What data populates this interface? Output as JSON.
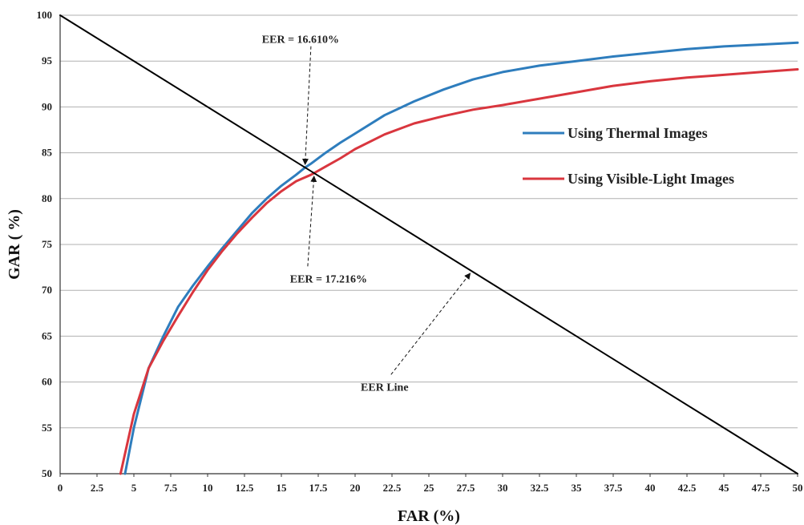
{
  "chart_data": {
    "type": "line",
    "xlabel": "FAR (%)",
    "ylabel": "GAR ( %)",
    "xlim": [
      0,
      50
    ],
    "ylim": [
      50,
      100
    ],
    "grid": true,
    "legend_placement": "right",
    "x_ticks": [
      "0",
      "2.5",
      "5",
      "7.5",
      "10",
      "12.5",
      "15",
      "17.5",
      "20",
      "22.5",
      "25",
      "27.5",
      "30",
      "32.5",
      "35",
      "37.5",
      "40",
      "42.5",
      "45",
      "47.5",
      "50"
    ],
    "y_ticks": [
      "50",
      "55",
      "60",
      "65",
      "70",
      "75",
      "80",
      "85",
      "90",
      "95",
      "100"
    ],
    "series": [
      {
        "name": "Using Thermal Images",
        "color": "#2e7dbd",
        "x": [
          4.4,
          5,
          6,
          7,
          8,
          9,
          10,
          11,
          12,
          13,
          14,
          15,
          16,
          16.61,
          17,
          18,
          19,
          20,
          22,
          24,
          26,
          28,
          30,
          32.5,
          35,
          37.5,
          40,
          42.5,
          45,
          47.5,
          50
        ],
        "y": [
          50,
          55,
          61.5,
          65,
          68.2,
          70.5,
          72.6,
          74.6,
          76.5,
          78.4,
          80,
          81.4,
          82.6,
          83.39,
          83.8,
          85,
          86.1,
          87.1,
          89.1,
          90.6,
          91.9,
          93.0,
          93.8,
          94.5,
          95.0,
          95.5,
          95.9,
          96.3,
          96.6,
          96.8,
          97.0
        ]
      },
      {
        "name": "Using Visible-Light Images",
        "color": "#d9363e",
        "x": [
          4.1,
          5,
          6,
          7,
          8,
          9,
          10,
          11,
          12,
          13,
          14,
          15,
          16,
          17,
          17.216,
          18,
          19,
          20,
          22,
          24,
          26,
          28,
          30,
          32.5,
          35,
          37.5,
          40,
          42.5,
          45,
          47.5,
          50
        ],
        "y": [
          50,
          56.5,
          61.5,
          64.5,
          67.2,
          69.8,
          72.2,
          74.3,
          76.2,
          77.9,
          79.5,
          80.8,
          81.9,
          82.6,
          82.78,
          83.5,
          84.4,
          85.4,
          87.0,
          88.2,
          89.0,
          89.7,
          90.2,
          90.9,
          91.6,
          92.3,
          92.8,
          93.2,
          93.5,
          93.8,
          94.1
        ]
      },
      {
        "name": "EER Line",
        "color": "#000000",
        "x": [
          0,
          50
        ],
        "y": [
          100,
          50
        ]
      }
    ],
    "annotations": [
      {
        "id": "eer_thermal",
        "text": "EER = 16.610%",
        "point": [
          16.61,
          83.39
        ],
        "text_at": [
          16.3,
          97.4
        ],
        "anchor": "middle"
      },
      {
        "id": "eer_visible",
        "text": "EER = 17.216%",
        "point": [
          17.216,
          82.784
        ],
        "text_at": [
          18.2,
          71.3
        ],
        "anchor": "middle"
      },
      {
        "id": "eer_line",
        "text": "EER Line",
        "point": [
          27.8,
          72.2
        ],
        "text_at": [
          22.0,
          59.5
        ],
        "anchor": "middle"
      }
    ]
  }
}
